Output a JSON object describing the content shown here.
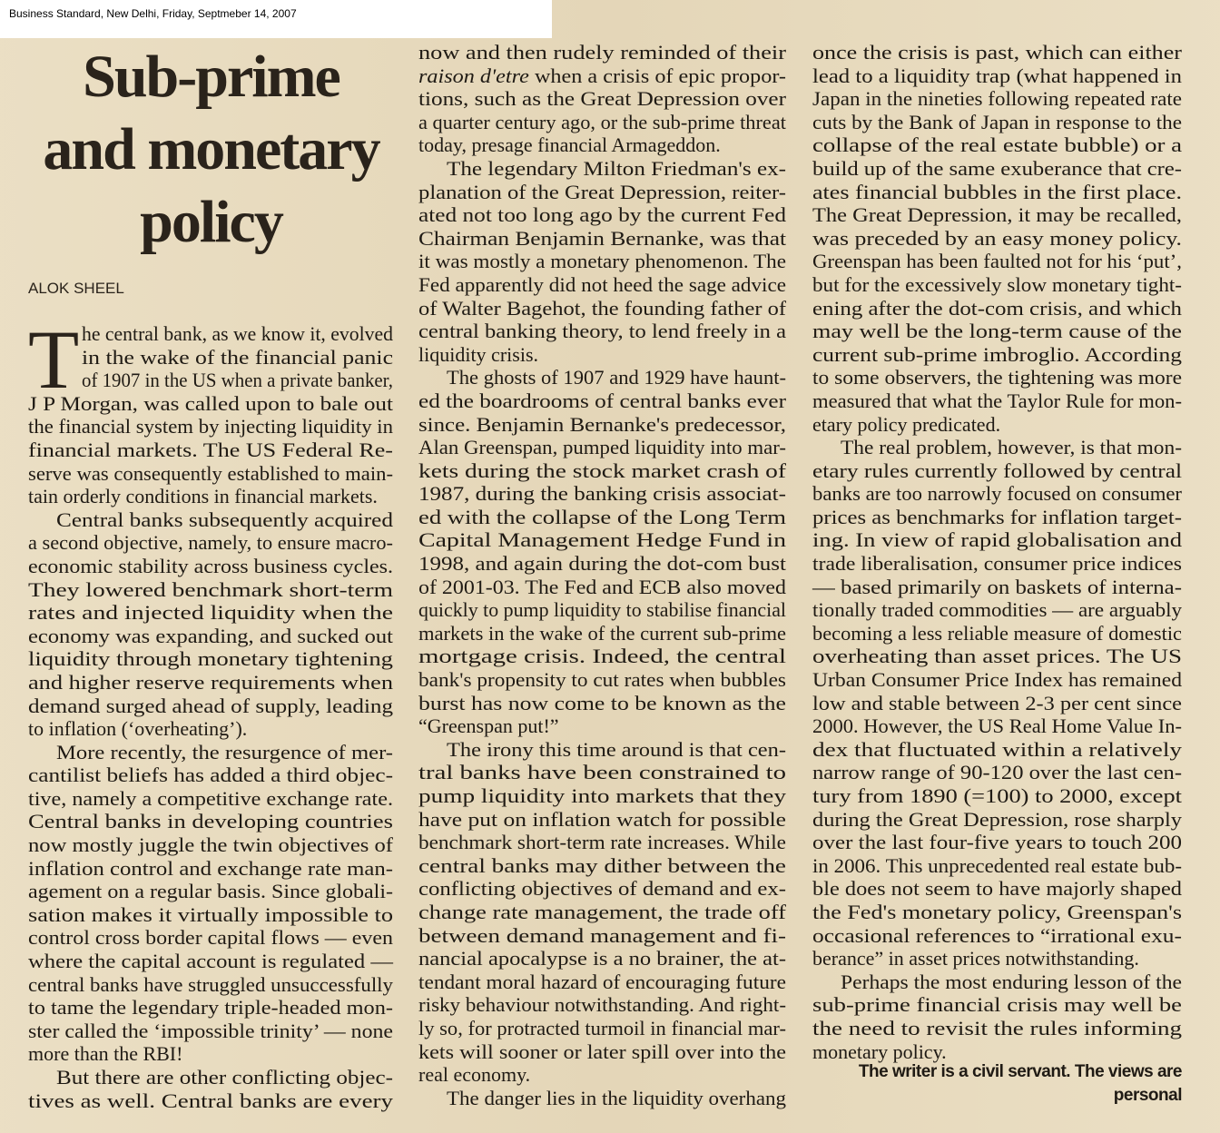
{
  "header": {
    "source_line": "Business Standard, New Delhi, Friday, Septmeber 14, 2007"
  },
  "article": {
    "title_lines": [
      "Sub-prime",
      "and monetary",
      "policy"
    ],
    "byline": "ALOK SHEEL",
    "drop_cap": "T",
    "columns": [
      [
        {
          "dropcap": true,
          "lines": [
            "he central bank, as we know it, evolved",
            "in the wake of the financial panic",
            "of 1907 in the US when a private banker,",
            "J P Morgan, was called upon to bale out",
            "the financial system by injecting liquidity in",
            "financial markets. The US Federal Re-",
            "serve was consequently established to main-",
            "tain orderly conditions in financial markets."
          ]
        },
        {
          "lines": [
            "Central banks subsequently acquired",
            "a second objective, namely, to ensure macro-",
            "economic stability across business cycles.",
            "They lowered benchmark short-term",
            "rates and injected liquidity when the",
            "economy was expanding, and sucked out",
            "liquidity through monetary tightening",
            "and higher reserve requirements when",
            "demand surged ahead of supply, leading",
            "to inflation (‘overheating’)."
          ]
        },
        {
          "lines": [
            "More recently, the resurgence of mer-",
            "cantilist beliefs has added a third objec-",
            "tive, namely a competitive exchange rate.",
            "Central banks in developing countries",
            "now mostly juggle the twin objectives of",
            "inflation control and exchange rate man-",
            "agement on a regular basis. Since globali-",
            "sation makes it virtually impossible to",
            "control cross border capital flows — even",
            "where the capital account is regulated —",
            "central banks have struggled unsuccessfully",
            "to tame the legendary triple-headed mon-",
            "ster called the ‘impossible trinity’ — none",
            "more than the RBI!"
          ]
        },
        {
          "continues": true,
          "lines": [
            "But there are other conflicting objec-",
            "tives as well. Central banks are every"
          ]
        }
      ],
      [
        {
          "noindent": true,
          "lines": [
            "now and then rudely reminded of their",
            "raison d'etre when a crisis of epic propor-",
            "tions, such as the Great Depression over",
            "a quarter century ago, or the sub-prime threat",
            "today, presage financial Armageddon."
          ]
        },
        {
          "lines": [
            "The legendary Milton Friedman's ex-",
            "planation of the Great Depression, reiter-",
            "ated not too long ago by the current Fed",
            "Chairman Benjamin Bernanke, was that",
            "it was mostly a monetary phenomenon. The",
            "Fed apparently did not heed the sage advice",
            "of Walter Bagehot, the founding father of",
            "central banking theory, to lend freely in a",
            "liquidity crisis."
          ]
        },
        {
          "lines": [
            "The ghosts of 1907 and 1929 have haunt-",
            "ed the boardrooms of central banks ever",
            "since. Benjamin Bernanke's predecessor,",
            "Alan Greenspan, pumped liquidity into mar-",
            "kets during the stock market crash of",
            "1987, during the banking crisis associat-",
            "ed with the collapse of the Long Term",
            "Capital Management Hedge Fund in",
            "1998, and again during the dot-com bust",
            "of 2001-03. The Fed and ECB also moved",
            "quickly to pump liquidity to stabilise financial",
            "markets in the wake of the current sub-prime",
            "mortgage crisis. Indeed, the central",
            "bank's propensity to cut rates when bubbles",
            "burst has now come to be known as the",
            "“Greenspan put!”"
          ]
        },
        {
          "lines": [
            "The irony this time around is that cen-",
            "tral banks have been constrained to",
            "pump liquidity into markets that they",
            "have put on inflation watch for possible",
            "benchmark short-term rate increases. While",
            "central banks may dither between the",
            "conflicting objectives of demand and ex-",
            "change rate management, the trade off",
            "between demand management and fi-",
            "nancial apocalypse is a no brainer, the at-",
            "tendant moral hazard of encouraging future",
            "risky behaviour notwithstanding. And right-",
            "ly so, for protracted turmoil in financial mar-",
            "kets will sooner or later spill over into the",
            "real economy."
          ]
        },
        {
          "continues": true,
          "lines": [
            "The danger lies in the liquidity overhang"
          ]
        }
      ],
      [
        {
          "noindent": true,
          "lines": [
            "once the crisis is past, which can either",
            "lead to a liquidity trap (what happened in",
            "Japan in the nineties following repeated rate",
            "cuts by the Bank of Japan in response to the",
            "collapse of the real estate bubble) or a",
            "build up of the same exuberance that cre-",
            "ates financial bubbles in the first place.",
            "The Great Depression, it may be recalled,",
            "was preceded by an easy money policy.",
            "Greenspan has been faulted not for his ‘put’,",
            "but for the excessively slow monetary tight-",
            "ening after the dot-com crisis, and which",
            "may well be the long-term cause of the",
            "current sub-prime imbroglio. According",
            "to some observers, the tightening was more",
            "measured that what the Taylor Rule for mon-",
            "etary policy predicated."
          ]
        },
        {
          "lines": [
            "The real problem, however, is that mon-",
            "etary rules currently followed by central",
            "banks are too narrowly focused on consumer",
            "prices as benchmarks for inflation target-",
            "ing. In view of rapid globalisation and",
            "trade liberalisation, consumer price indices",
            "— based primarily on baskets of interna-",
            "tionally traded commodities — are arguably",
            "becoming a less reliable measure of domestic",
            "overheating than asset prices. The US",
            "Urban Consumer Price Index has remained",
            "low and stable between 2-3 per cent since",
            "2000. However, the US Real Home Value In-",
            "dex that fluctuated within a relatively",
            "narrow range of 90-120 over the last cen-",
            "tury from 1890 (=100) to 2000, except",
            "during the Great Depression, rose sharply",
            "over the last four-five years to touch 200",
            "in 2006. This unprecedented real estate bub-",
            "ble does not seem to have majorly shaped",
            "the Fed's monetary policy, Greenspan's",
            "occasional references to “irrational exu-",
            "berance” in asset prices notwithstanding."
          ]
        },
        {
          "lines": [
            "Perhaps the most enduring lesson of the",
            "sub-prime financial crisis may well be",
            "the need to revisit the rules informing",
            "monetary policy."
          ]
        }
      ]
    ],
    "footer_lines": [
      "The writer is a civil servant. The views are",
      "personal"
    ]
  }
}
